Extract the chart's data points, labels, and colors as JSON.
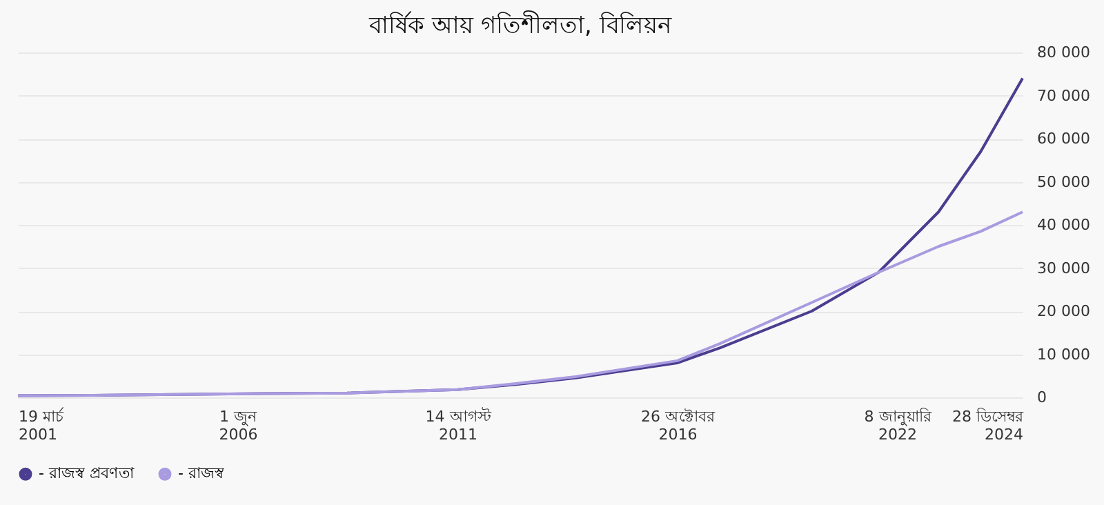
{
  "chart_data": {
    "type": "line",
    "title": "বার্ষিক আয় গতিশীলতা, বিলিয়ন",
    "x": [
      "2001-03-19",
      "2003-01",
      "2005-01",
      "2007-01",
      "2009-01",
      "2011-08-14",
      "2013-01",
      "2014-06",
      "2016-10-26",
      "2017-11",
      "2020-01",
      "2021-08",
      "2023-01",
      "2024-01",
      "2024-12-28"
    ],
    "series": [
      {
        "name": "- রাজস্ব প্রবণতা",
        "color": "#4b3d8f",
        "values": [
          400,
          500,
          700,
          900,
          1000,
          1800,
          3000,
          4500,
          8000,
          11500,
          20000,
          29000,
          43000,
          57000,
          74000
        ]
      },
      {
        "name": "- রাজস্ব",
        "color": "#a99be0",
        "values": [
          400,
          500,
          700,
          900,
          1000,
          1800,
          3200,
          4800,
          8500,
          12500,
          22000,
          29000,
          35000,
          38500,
          43000
        ]
      }
    ],
    "xlim": [
      "2001-03-19",
      "2024-12-28"
    ],
    "xticks": [
      {
        "value": "2001-03-19",
        "label": "19 মার্চ\n2001"
      },
      {
        "value": "2006-06-01",
        "label": "1 জুন\n2006"
      },
      {
        "value": "2011-08-14",
        "label": "14 আগস্ট\n2011"
      },
      {
        "value": "2016-10-26",
        "label": "26 অক্টোবর\n2016"
      },
      {
        "value": "2022-01-08",
        "label": "8 জানুয়ারি\n2022"
      },
      {
        "value": "2024-12-28",
        "label": "28 ডিসেম্বর\n2024"
      }
    ],
    "ylim": [
      0,
      80000
    ],
    "yticks": [
      {
        "value": 0,
        "label": "0"
      },
      {
        "value": 10000,
        "label": "10 000"
      },
      {
        "value": 20000,
        "label": "20 000"
      },
      {
        "value": 30000,
        "label": "30 000"
      },
      {
        "value": 40000,
        "label": "40 000"
      },
      {
        "value": 50000,
        "label": "50 000"
      },
      {
        "value": 60000,
        "label": "60 000"
      },
      {
        "value": 70000,
        "label": "70 000"
      },
      {
        "value": 80000,
        "label": "80 000"
      }
    ],
    "grid": "y",
    "legend": "bottom left",
    "marker": "none",
    "line_style": "solid"
  }
}
